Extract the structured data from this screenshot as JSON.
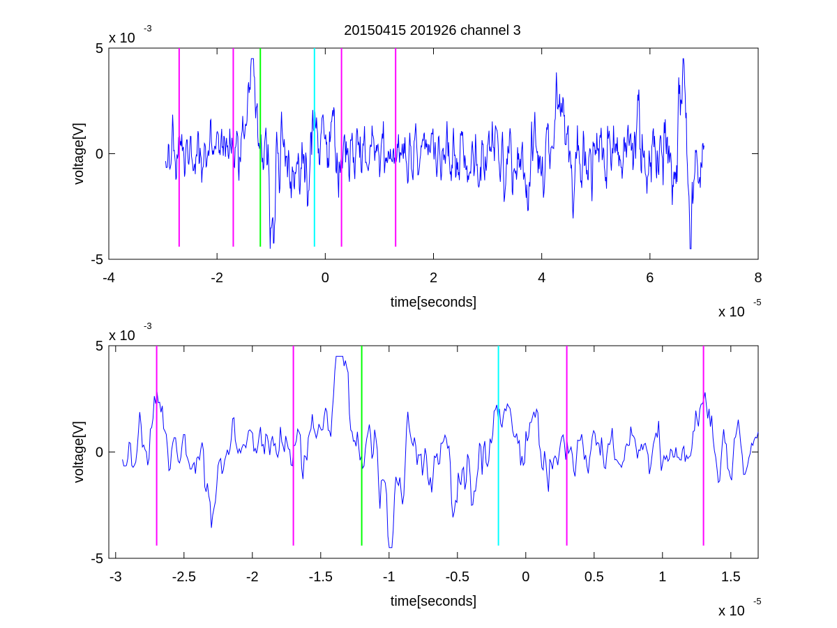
{
  "figure_title": "20150415 201926 channel 3",
  "chart_data": [
    {
      "type": "line",
      "title": "20150415 201926 channel 3",
      "xlabel": "time[seconds]",
      "ylabel": "voltage[V]",
      "x_multiplier": "x 10",
      "x_exponent": "-5",
      "y_multiplier": "x 10",
      "y_exponent": "-3",
      "xlim": [
        -4e-05,
        8e-05
      ],
      "ylim": [
        -0.005,
        0.005
      ],
      "xticks": [
        -4e-05,
        -2e-05,
        0,
        2e-05,
        4e-05,
        6e-05,
        8e-05
      ],
      "xtick_labels": [
        "-4",
        "-2",
        "0",
        "2",
        "4",
        "6",
        "8"
      ],
      "yticks": [
        -0.005,
        0,
        0.005
      ],
      "ytick_labels": [
        "-5",
        "0",
        "5"
      ],
      "signal": {
        "color": "#0000ff",
        "x_start": -2.95e-05,
        "x_end": 7e-05,
        "points": 1000,
        "seed": 1,
        "envelope": [
          [
            -2.95e-05,
            0.001
          ],
          [
            -1.5e-05,
            0.0011
          ],
          [
            -5e-06,
            0.0013
          ],
          [
            1.5e-05,
            0.0009
          ],
          [
            2.5e-05,
            0.0011
          ],
          [
            3.5e-05,
            0.0014
          ],
          [
            4.5e-05,
            0.0016
          ],
          [
            5.5e-05,
            0.0012
          ],
          [
            6.6e-05,
            0.0017
          ],
          [
            7e-05,
            0.0011
          ]
        ],
        "peaks": [
          [
            -1.36e-05,
            0.0044
          ],
          [
            -5.5e-06,
            0.0028
          ],
          [
            -9.8e-06,
            -0.0035
          ],
          [
            -5.5e-06,
            -0.0038
          ],
          [
            4.3e-05,
            0.0035
          ],
          [
            6.6e-05,
            0.0026
          ],
          [
            6.75e-05,
            -0.0038
          ],
          [
            -2e-06,
            0.0022
          ]
        ]
      },
      "markers": [
        {
          "x": -2.7e-05,
          "color": "#ff00ff"
        },
        {
          "x": -1.7e-05,
          "color": "#ff00ff"
        },
        {
          "x": -1.2e-05,
          "color": "#00ff00"
        },
        {
          "x": -2e-06,
          "color": "#00ffff"
        },
        {
          "x": 3e-06,
          "color": "#ff00ff"
        },
        {
          "x": 1.3e-05,
          "color": "#ff00ff"
        }
      ],
      "marker_ylim": [
        -0.0044,
        0.005
      ]
    },
    {
      "type": "line",
      "title": "",
      "xlabel": "time[seconds]",
      "ylabel": "voltage[V]",
      "x_multiplier": "x 10",
      "x_exponent": "-5",
      "y_multiplier": "x 10",
      "y_exponent": "-3",
      "xlim": [
        -3.05e-05,
        1.7e-05
      ],
      "ylim": [
        -0.005,
        0.005
      ],
      "xticks": [
        -3e-05,
        -2.5e-05,
        -2e-05,
        -1.5e-05,
        -1e-05,
        -5e-06,
        0,
        5e-06,
        1e-05,
        1.5e-05
      ],
      "xtick_labels": [
        "-3",
        "-2.5",
        "-2",
        "-1.5",
        "-1",
        "-0.5",
        "0",
        "0.5",
        "1",
        "1.5"
      ],
      "yticks": [
        -0.005,
        0,
        0.005
      ],
      "ytick_labels": [
        "-5",
        "0",
        "5"
      ],
      "signal": {
        "color": "#0000ff",
        "x_start": -2.95e-05,
        "x_end": 1.7e-05,
        "points": 480,
        "seed": 1,
        "envelope": [
          [
            -2.95e-05,
            0.001
          ],
          [
            -1.5e-05,
            0.0011
          ],
          [
            -5e-06,
            0.0013
          ],
          [
            5e-06,
            0.0009
          ],
          [
            1.7e-05,
            0.001
          ]
        ],
        "peaks": [
          [
            -2.7e-05,
            0.002
          ],
          [
            -1.36e-05,
            0.0044
          ],
          [
            -5.5e-06,
            0.0028
          ],
          [
            -9.8e-06,
            -0.0035
          ],
          [
            -5.3e-06,
            -0.0039
          ],
          [
            -2e-06,
            0.0022
          ],
          [
            1.3e-05,
            0.0024
          ],
          [
            -2.3e-05,
            -0.0022
          ]
        ]
      },
      "markers": [
        {
          "x": -2.7e-05,
          "color": "#ff00ff"
        },
        {
          "x": -1.7e-05,
          "color": "#ff00ff"
        },
        {
          "x": -1.2e-05,
          "color": "#00ff00"
        },
        {
          "x": -2e-06,
          "color": "#00ffff"
        },
        {
          "x": 3e-06,
          "color": "#ff00ff"
        },
        {
          "x": 1.3e-05,
          "color": "#ff00ff"
        }
      ],
      "marker_ylim": [
        -0.0044,
        0.005
      ]
    }
  ]
}
